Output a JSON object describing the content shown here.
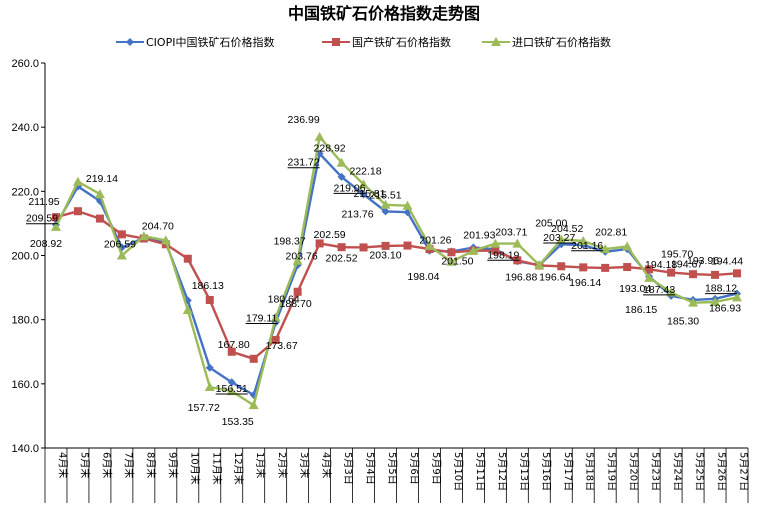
{
  "chart_data": {
    "type": "line",
    "title": "中国铁矿石价格指数走势图",
    "ylim": [
      140,
      260
    ],
    "yticks": [
      "140.0",
      "160.0",
      "180.0",
      "200.0",
      "220.0",
      "240.0",
      "260.0"
    ],
    "grid": false,
    "legend_position": "top",
    "categories": [
      "4月末",
      "5月末",
      "6月末",
      "7月末",
      "8月末",
      "9月末",
      "10月末",
      "11月末",
      "12月末",
      "1月末",
      "2月末",
      "3月末",
      "4月末",
      "5月3日",
      "5月4日",
      "5月5日",
      "5月6日",
      "5月9日",
      "5月10日",
      "5月11日",
      "5月12日",
      "5月13日",
      "5月16日",
      "5月17日",
      "5月18日",
      "5月19日",
      "5月20日",
      "5月23日",
      "5月24日",
      "5月25日",
      "5月26日",
      "5月27日"
    ],
    "series": [
      {
        "name": "CIOPI中国铁矿石价格指数",
        "color": "#4472C4",
        "marker": "diamond",
        "values": [
          209.59,
          221.5,
          217.0,
          202.5,
          205.5,
          204.0,
          186.0,
          165.0,
          160.5,
          156.51,
          179.11,
          197.0,
          231.72,
          224.5,
          219.06,
          213.76,
          213.5,
          201.5,
          201.26,
          202.5,
          201.93,
          198.19,
          197.0,
          203.5,
          203.27,
          201.16,
          202.0,
          193.5,
          187.43,
          186.15,
          186.5,
          188.12
        ]
      },
      {
        "name": "国产铁矿石价格指数",
        "color": "#C0504D",
        "marker": "square",
        "values": [
          211.95,
          213.8,
          211.5,
          206.59,
          205.3,
          203.5,
          199.0,
          186.13,
          170.0,
          167.8,
          173.67,
          188.7,
          203.76,
          202.59,
          202.52,
          203.0,
          203.1,
          202.0,
          201.0,
          201.5,
          201.5,
          198.5,
          196.88,
          196.64,
          196.3,
          196.14,
          196.4,
          195.7,
          194.67,
          194.18,
          193.96,
          194.44
        ]
      },
      {
        "name": "进口铁矿石价格指数",
        "color": "#9BBB59",
        "marker": "triangle",
        "values": [
          208.92,
          223.0,
          219.14,
          200.0,
          206.0,
          204.7,
          183.0,
          159.0,
          157.72,
          153.35,
          180.64,
          198.37,
          236.99,
          228.92,
          222.18,
          215.81,
          215.51,
          203.0,
          198.04,
          201.5,
          203.71,
          203.71,
          197.0,
          205.0,
          204.52,
          202.0,
          202.81,
          193.04,
          188.5,
          185.3,
          185.5,
          186.93
        ]
      }
    ],
    "data_labels": [
      {
        "text": "211.95",
        "x": 0,
        "y": 211.95
      },
      {
        "text": "209.59",
        "x": 0,
        "y": 209.59
      },
      {
        "text": "208.92",
        "x": 0,
        "y": 208.92
      },
      {
        "text": "219.14",
        "x": 2,
        "y": 219.14
      },
      {
        "text": "206.59",
        "x": 3,
        "y": 206.59
      },
      {
        "text": "204.70",
        "x": 5,
        "y": 204.7
      },
      {
        "text": "186.13",
        "x": 7,
        "y": 186.13
      },
      {
        "text": "157.72",
        "x": 8,
        "y": 157.72
      },
      {
        "text": "167.80",
        "x": 9,
        "y": 167.8
      },
      {
        "text": "156.51",
        "x": 9,
        "y": 156.51
      },
      {
        "text": "153.35",
        "x": 9,
        "y": 153.35
      },
      {
        "text": "180.64",
        "x": 10,
        "y": 180.64
      },
      {
        "text": "179.11",
        "x": 10,
        "y": 179.11
      },
      {
        "text": "173.67",
        "x": 10,
        "y": 173.67
      },
      {
        "text": "198.37",
        "x": 11,
        "y": 198.37
      },
      {
        "text": "188.70",
        "x": 11,
        "y": 188.7
      },
      {
        "text": "236.99",
        "x": 12,
        "y": 236.99
      },
      {
        "text": "231.72",
        "x": 12,
        "y": 231.72
      },
      {
        "text": "203.76",
        "x": 12,
        "y": 203.76
      },
      {
        "text": "228.92",
        "x": 13,
        "y": 228.92
      },
      {
        "text": "202.59",
        "x": 13,
        "y": 202.59
      },
      {
        "text": "222.18",
        "x": 14,
        "y": 222.18
      },
      {
        "text": "219.06",
        "x": 14,
        "y": 219.06
      },
      {
        "text": "213.76",
        "x": 15,
        "y": 213.76
      },
      {
        "text": "202.52",
        "x": 14,
        "y": 202.52
      },
      {
        "text": "215.81",
        "x": 15,
        "y": 215.81
      },
      {
        "text": "215.51",
        "x": 16,
        "y": 215.51
      },
      {
        "text": "203.10",
        "x": 16,
        "y": 203.1
      },
      {
        "text": "201.26",
        "x": 18,
        "y": 201.26
      },
      {
        "text": "198.04",
        "x": 18,
        "y": 198.04
      },
      {
        "text": "201.50",
        "x": 19,
        "y": 201.5
      },
      {
        "text": "201.93",
        "x": 20,
        "y": 201.93
      },
      {
        "text": "198.19",
        "x": 21,
        "y": 198.19
      },
      {
        "text": "203.71",
        "x": 21,
        "y": 203.71
      },
      {
        "text": "205.00",
        "x": 23,
        "y": 205.0
      },
      {
        "text": "196.88",
        "x": 22,
        "y": 196.88
      },
      {
        "text": "204.52",
        "x": 24,
        "y": 204.52
      },
      {
        "text": "203.27",
        "x": 24,
        "y": 203.27
      },
      {
        "text": "196.64",
        "x": 24,
        "y": 196.64
      },
      {
        "text": "201.16",
        "x": 25,
        "y": 201.16
      },
      {
        "text": "196.14",
        "x": 25,
        "y": 196.14
      },
      {
        "text": "202.81",
        "x": 26,
        "y": 202.81
      },
      {
        "text": "193.04",
        "x": 27,
        "y": 193.04
      },
      {
        "text": "195.70",
        "x": 28,
        "y": 195.7
      },
      {
        "text": "194.18",
        "x": 28,
        "y": 194.18
      },
      {
        "text": "187.43",
        "x": 28,
        "y": 187.43
      },
      {
        "text": "186.15",
        "x": 28,
        "y": 186.15
      },
      {
        "text": "194.67",
        "x": 29,
        "y": 194.67
      },
      {
        "text": "185.30",
        "x": 29,
        "y": 185.3
      },
      {
        "text": "193.96",
        "x": 30,
        "y": 193.96
      },
      {
        "text": "194.44",
        "x": 31,
        "y": 194.44
      },
      {
        "text": "188.12",
        "x": 31,
        "y": 188.12
      },
      {
        "text": "186.93",
        "x": 31,
        "y": 186.93
      }
    ]
  }
}
